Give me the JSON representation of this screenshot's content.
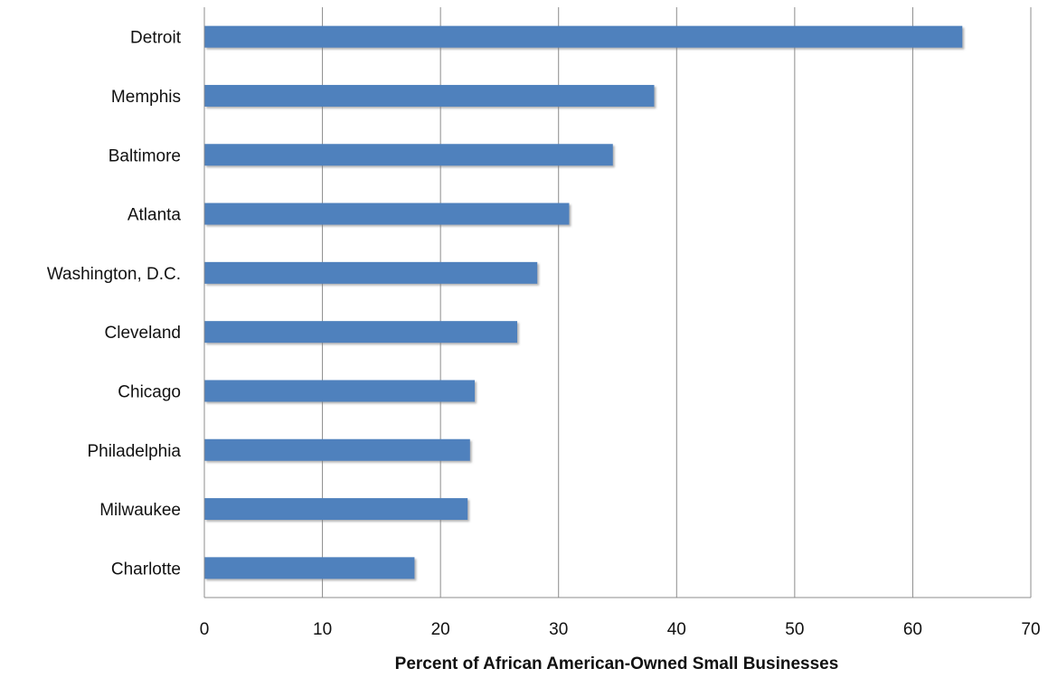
{
  "chart_data": {
    "type": "bar",
    "orientation": "horizontal",
    "categories": [
      "Detroit",
      "Memphis",
      "Baltimore",
      "Atlanta",
      "Washington, D.C.",
      "Cleveland",
      "Chicago",
      "Philadelphia",
      "Milwaukee",
      "Charlotte"
    ],
    "values": [
      64.2,
      38.1,
      34.6,
      30.9,
      28.2,
      26.5,
      22.9,
      22.5,
      22.3,
      17.8
    ],
    "xlabel": "Percent of African American-Owned Small Businesses",
    "ylabel": "",
    "xlim": [
      0,
      70
    ],
    "xticks": [
      "0",
      "10",
      "20",
      "30",
      "40",
      "50",
      "60",
      "70"
    ],
    "grid": "vertical",
    "legend": "none",
    "bar_color": "#4F81BD"
  }
}
